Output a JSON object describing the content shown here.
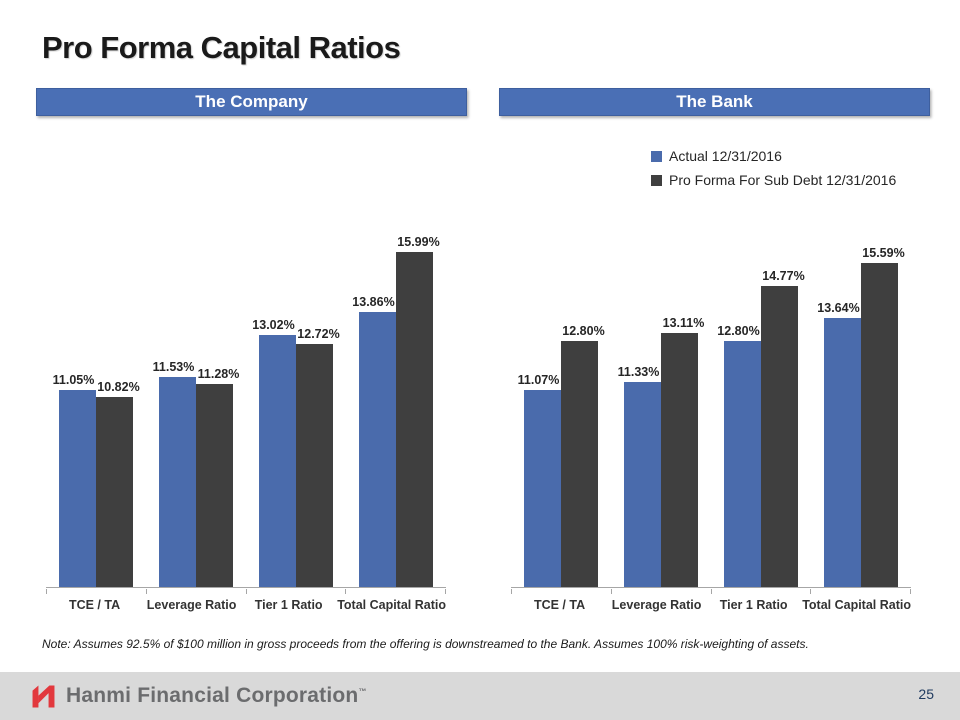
{
  "slide_title": "Pro Forma Capital Ratios",
  "chart_data": [
    {
      "type": "bar",
      "title": "The Company",
      "categories": [
        "TCE / TA",
        "Leverage Ratio",
        "Tier 1 Ratio",
        "Total Capital Ratio"
      ],
      "series": [
        {
          "name": "Actual 12/31/2016",
          "color": "#4a6bac",
          "values": [
            11.05,
            11.53,
            13.02,
            13.86
          ]
        },
        {
          "name": "Pro Forma For Sub Debt 12/31/2016",
          "color": "#3f3f3f",
          "values": [
            10.82,
            11.28,
            12.72,
            15.99
          ]
        }
      ],
      "value_suffix": "%",
      "data_labels": true,
      "ylim": [
        4,
        17
      ],
      "grid": false,
      "y_axis_visible": false,
      "legend_position": "top-right-shared"
    },
    {
      "type": "bar",
      "title": "The Bank",
      "categories": [
        "TCE / TA",
        "Leverage Ratio",
        "Tier 1 Ratio",
        "Total Capital Ratio"
      ],
      "series": [
        {
          "name": "Actual 12/31/2016",
          "color": "#4a6bac",
          "values": [
            11.07,
            11.33,
            12.8,
            13.64
          ]
        },
        {
          "name": "Pro Forma For Sub Debt 12/31/2016",
          "color": "#3f3f3f",
          "values": [
            12.8,
            13.11,
            14.77,
            15.59
          ]
        }
      ],
      "value_suffix": "%",
      "data_labels": true,
      "ylim": [
        4,
        17
      ],
      "grid": false,
      "y_axis_visible": false,
      "legend_position": "top-right-shared"
    }
  ],
  "note": "Note: Assumes 92.5% of $100 million in gross proceeds from the offering is downstreamed to the Bank. Assumes 100% risk-weighting of assets.",
  "footer": {
    "company": "Hanmi Financial Corporation",
    "trademark": "™",
    "page": "25"
  },
  "colors": {
    "header_bar": "#4a6fb5",
    "axis": "#a6a6a6",
    "footer_bg": "#d9d9d9",
    "footer_text": "#6b6c6e",
    "logo_red": "#e2383d",
    "page_number": "#1f3a5f"
  }
}
